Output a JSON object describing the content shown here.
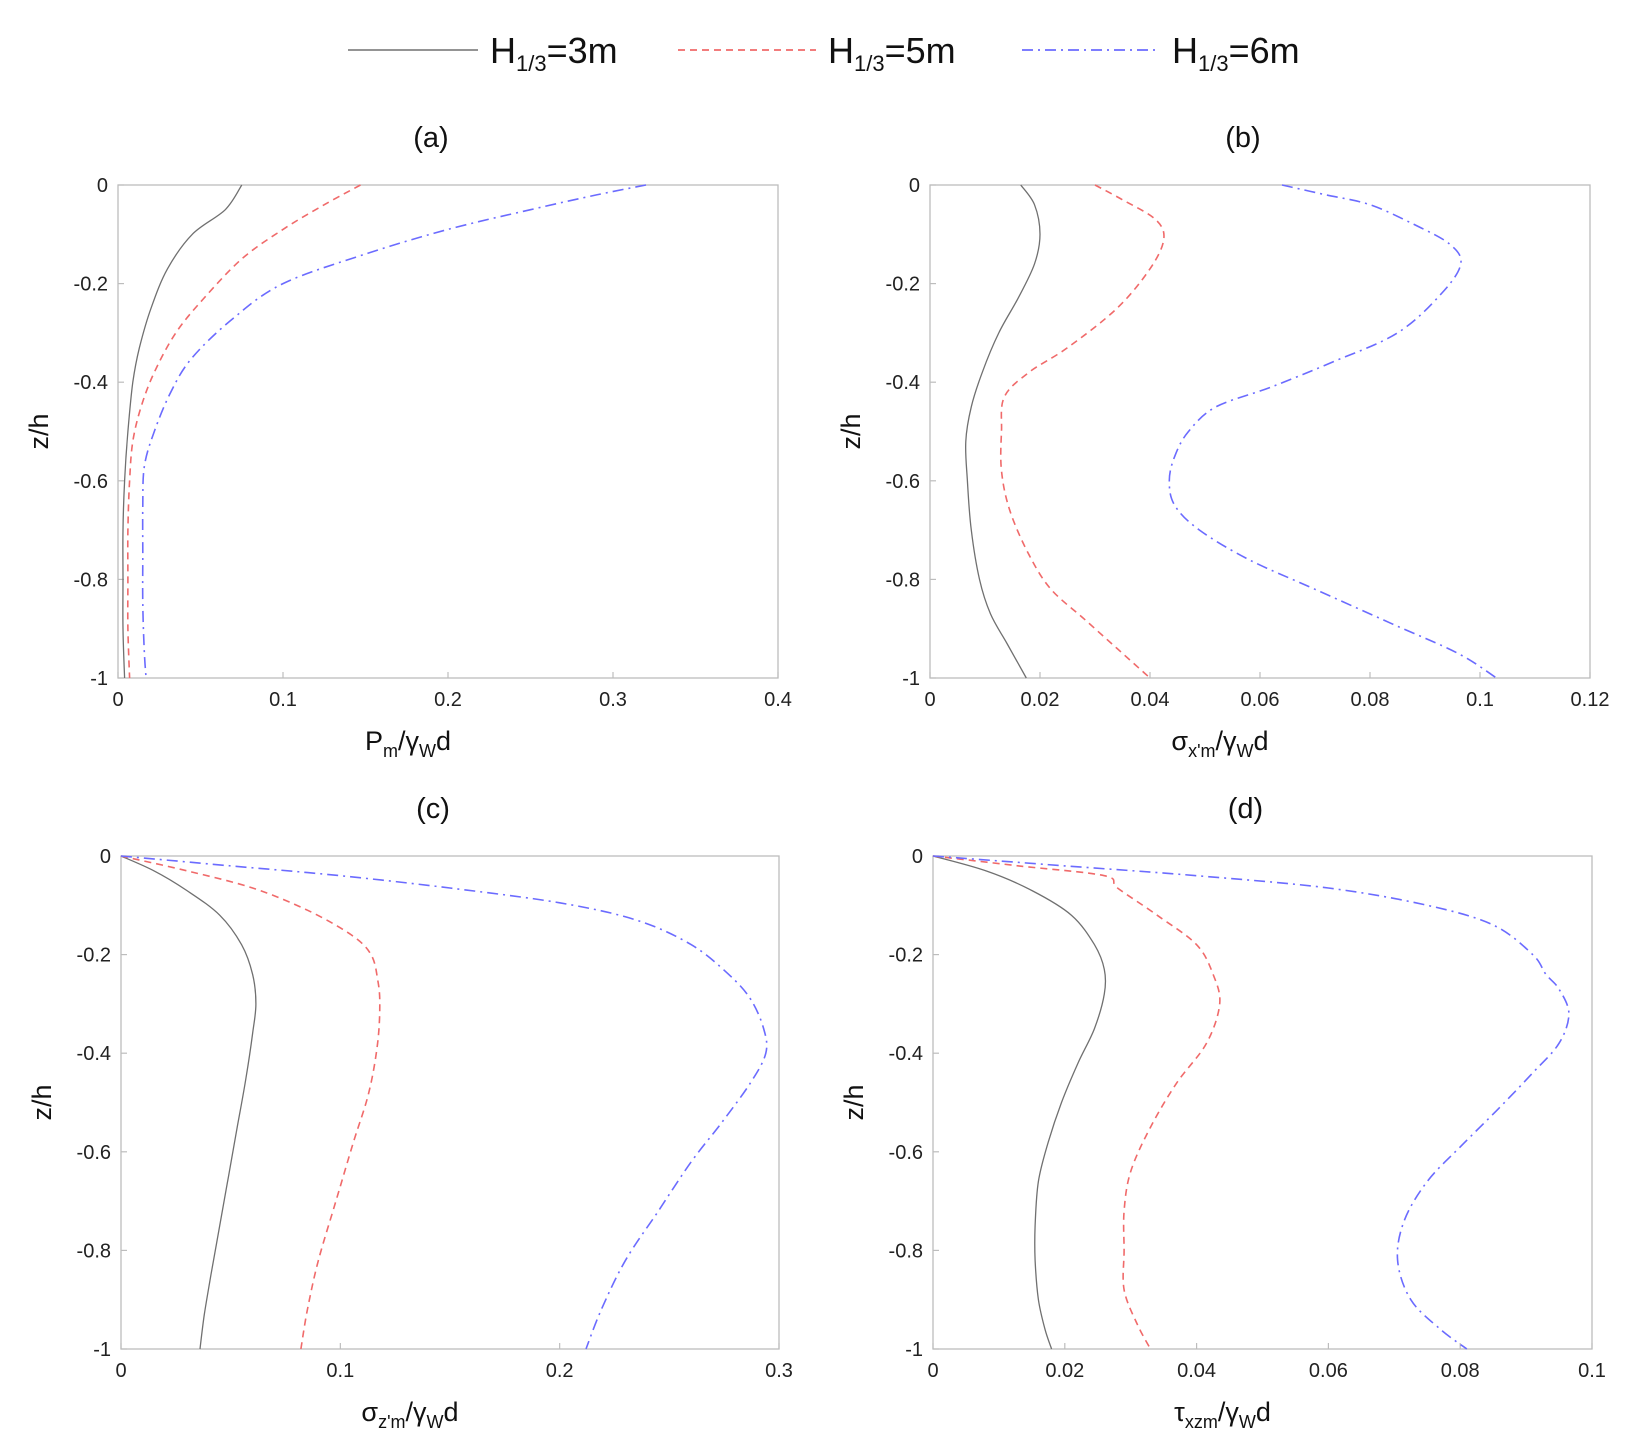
{
  "legend": [
    {
      "main": "H",
      "sub": "1/3",
      "rest": "=3m",
      "color": "#707070",
      "dash": "",
      "width": 1.3
    },
    {
      "main": "H",
      "sub": "1/3",
      "rest": "=5m",
      "color": "#f06a6a",
      "dash": "7,5",
      "width": 1.6
    },
    {
      "main": "H",
      "sub": "1/3",
      "rest": "=6m",
      "color": "#6b6bff",
      "dash": "11,5,2,5",
      "width": 1.6
    }
  ],
  "chart_data": [
    {
      "type": "line",
      "panel_label": "(a)",
      "xlabel": {
        "main": "P",
        "sub1": "m",
        "mid": "/γ",
        "sub2": "W",
        "tail": "d"
      },
      "ylabel": "z/h",
      "xlim": [
        0,
        0.4
      ],
      "ylim": [
        -1,
        0
      ],
      "xticks": [
        "0",
        "0.1",
        "0.2",
        "0.3",
        "0.4"
      ],
      "yticks": [
        "0",
        "-0.2",
        "-0.4",
        "-0.6",
        "-0.8",
        "-1"
      ],
      "series": [
        {
          "name": "H1/3=3m",
          "points": [
            [
              0.075,
              0
            ],
            [
              0.065,
              -0.05
            ],
            [
              0.045,
              -0.1
            ],
            [
              0.03,
              -0.17
            ],
            [
              0.02,
              -0.25
            ],
            [
              0.013,
              -0.33
            ],
            [
              0.009,
              -0.4
            ],
            [
              0.006,
              -0.5
            ],
            [
              0.004,
              -0.6
            ],
            [
              0.003,
              -0.7
            ],
            [
              0.003,
              -0.8
            ],
            [
              0.003,
              -0.9
            ],
            [
              0.004,
              -1.0
            ]
          ]
        },
        {
          "name": "H1/3=5m",
          "points": [
            [
              0.147,
              0
            ],
            [
              0.125,
              -0.04
            ],
            [
              0.1,
              -0.09
            ],
            [
              0.075,
              -0.15
            ],
            [
              0.052,
              -0.23
            ],
            [
              0.035,
              -0.3
            ],
            [
              0.022,
              -0.38
            ],
            [
              0.014,
              -0.45
            ],
            [
              0.009,
              -0.52
            ],
            [
              0.007,
              -0.6
            ],
            [
              0.006,
              -0.7
            ],
            [
              0.006,
              -0.8
            ],
            [
              0.006,
              -0.9
            ],
            [
              0.007,
              -1.0
            ]
          ]
        },
        {
          "name": "H1/3=6m",
          "points": [
            [
              0.32,
              0
            ],
            [
              0.29,
              -0.02
            ],
            [
              0.25,
              -0.05
            ],
            [
              0.2,
              -0.09
            ],
            [
              0.15,
              -0.14
            ],
            [
              0.1,
              -0.2
            ],
            [
              0.07,
              -0.27
            ],
            [
              0.045,
              -0.35
            ],
            [
              0.032,
              -0.42
            ],
            [
              0.022,
              -0.5
            ],
            [
              0.016,
              -0.57
            ],
            [
              0.015,
              -0.65
            ],
            [
              0.015,
              -0.75
            ],
            [
              0.015,
              -0.85
            ],
            [
              0.016,
              -0.95
            ],
            [
              0.017,
              -1.0
            ]
          ]
        }
      ]
    },
    {
      "type": "line",
      "panel_label": "(b)",
      "xlabel": {
        "main": "σ",
        "sub1": "x'm",
        "mid": "/γ",
        "sub2": "W",
        "tail": "d"
      },
      "ylabel": "z/h",
      "xlim": [
        0,
        0.12
      ],
      "ylim": [
        -1,
        0
      ],
      "xticks": [
        "0",
        "0.02",
        "0.04",
        "0.06",
        "0.08",
        "0.1",
        "0.12"
      ],
      "yticks": [
        "0",
        "-0.2",
        "-0.4",
        "-0.6",
        "-0.8",
        "-1"
      ],
      "series": [
        {
          "name": "H1/3=3m",
          "points": [
            [
              0.0165,
              0
            ],
            [
              0.019,
              -0.04
            ],
            [
              0.02,
              -0.1
            ],
            [
              0.019,
              -0.16
            ],
            [
              0.016,
              -0.23
            ],
            [
              0.0125,
              -0.3
            ],
            [
              0.0095,
              -0.38
            ],
            [
              0.0075,
              -0.45
            ],
            [
              0.0065,
              -0.52
            ],
            [
              0.0068,
              -0.6
            ],
            [
              0.0075,
              -0.7
            ],
            [
              0.009,
              -0.8
            ],
            [
              0.011,
              -0.87
            ],
            [
              0.014,
              -0.93
            ],
            [
              0.0175,
              -1.0
            ]
          ]
        },
        {
          "name": "H1/3=5m",
          "points": [
            [
              0.03,
              0
            ],
            [
              0.035,
              -0.03
            ],
            [
              0.041,
              -0.07
            ],
            [
              0.0425,
              -0.11
            ],
            [
              0.04,
              -0.17
            ],
            [
              0.034,
              -0.25
            ],
            [
              0.025,
              -0.33
            ],
            [
              0.018,
              -0.38
            ],
            [
              0.0135,
              -0.43
            ],
            [
              0.013,
              -0.5
            ],
            [
              0.013,
              -0.58
            ],
            [
              0.0145,
              -0.66
            ],
            [
              0.018,
              -0.75
            ],
            [
              0.022,
              -0.82
            ],
            [
              0.028,
              -0.88
            ],
            [
              0.034,
              -0.94
            ],
            [
              0.04,
              -1.0
            ]
          ]
        },
        {
          "name": "H1/3=6m",
          "points": [
            [
              0.064,
              0
            ],
            [
              0.072,
              -0.02
            ],
            [
              0.08,
              -0.04
            ],
            [
              0.088,
              -0.08
            ],
            [
              0.0945,
              -0.12
            ],
            [
              0.0965,
              -0.16
            ],
            [
              0.093,
              -0.22
            ],
            [
              0.085,
              -0.3
            ],
            [
              0.073,
              -0.36
            ],
            [
              0.062,
              -0.41
            ],
            [
              0.052,
              -0.45
            ],
            [
              0.047,
              -0.5
            ],
            [
              0.0445,
              -0.55
            ],
            [
              0.0435,
              -0.6
            ],
            [
              0.0445,
              -0.65
            ],
            [
              0.049,
              -0.7
            ],
            [
              0.058,
              -0.76
            ],
            [
              0.07,
              -0.82
            ],
            [
              0.084,
              -0.89
            ],
            [
              0.096,
              -0.95
            ],
            [
              0.103,
              -1.0
            ]
          ]
        }
      ]
    },
    {
      "type": "line",
      "panel_label": "(c)",
      "xlabel": {
        "main": "σ",
        "sub1": "z'm",
        "mid": "/γ",
        "sub2": "W",
        "tail": "d"
      },
      "ylabel": "z/h",
      "xlim": [
        0,
        0.3
      ],
      "ylim": [
        -1,
        0
      ],
      "xticks": [
        "0",
        "0.1",
        "0.2",
        "0.3"
      ],
      "yticks": [
        "0",
        "-0.2",
        "-0.4",
        "-0.6",
        "-0.8",
        "-1"
      ],
      "series": [
        {
          "name": "H1/3=3m",
          "points": [
            [
              0,
              0
            ],
            [
              0.015,
              -0.03
            ],
            [
              0.03,
              -0.07
            ],
            [
              0.045,
              -0.12
            ],
            [
              0.055,
              -0.18
            ],
            [
              0.06,
              -0.24
            ],
            [
              0.0615,
              -0.3
            ],
            [
              0.06,
              -0.36
            ],
            [
              0.057,
              -0.45
            ],
            [
              0.053,
              -0.55
            ],
            [
              0.049,
              -0.65
            ],
            [
              0.045,
              -0.75
            ],
            [
              0.041,
              -0.85
            ],
            [
              0.038,
              -0.93
            ],
            [
              0.036,
              -1.0
            ]
          ]
        },
        {
          "name": "H1/3=5m",
          "points": [
            [
              0,
              0
            ],
            [
              0.03,
              -0.03
            ],
            [
              0.06,
              -0.065
            ],
            [
              0.085,
              -0.11
            ],
            [
              0.105,
              -0.16
            ],
            [
              0.114,
              -0.2
            ],
            [
              0.117,
              -0.25
            ],
            [
              0.118,
              -0.3
            ],
            [
              0.117,
              -0.38
            ],
            [
              0.113,
              -0.48
            ],
            [
              0.106,
              -0.58
            ],
            [
              0.098,
              -0.7
            ],
            [
              0.09,
              -0.82
            ],
            [
              0.085,
              -0.92
            ],
            [
              0.082,
              -1.0
            ]
          ]
        },
        {
          "name": "H1/3=6m",
          "points": [
            [
              0,
              0
            ],
            [
              0.05,
              -0.02
            ],
            [
              0.1,
              -0.04
            ],
            [
              0.15,
              -0.065
            ],
            [
              0.2,
              -0.095
            ],
            [
              0.235,
              -0.13
            ],
            [
              0.26,
              -0.18
            ],
            [
              0.277,
              -0.24
            ],
            [
              0.287,
              -0.29
            ],
            [
              0.293,
              -0.35
            ],
            [
              0.294,
              -0.4
            ],
            [
              0.287,
              -0.46
            ],
            [
              0.274,
              -0.54
            ],
            [
              0.26,
              -0.62
            ],
            [
              0.245,
              -0.72
            ],
            [
              0.23,
              -0.82
            ],
            [
              0.219,
              -0.92
            ],
            [
              0.212,
              -1.0
            ]
          ]
        }
      ]
    },
    {
      "type": "line",
      "panel_label": "(d)",
      "xlabel": {
        "main": "τ",
        "sub1": "xzm",
        "mid": "/γ",
        "sub2": "W",
        "tail": "d"
      },
      "ylabel": "z/h",
      "xlim": [
        0,
        0.1
      ],
      "ylim": [
        -1,
        0
      ],
      "xticks": [
        "0",
        "0.02",
        "0.04",
        "0.06",
        "0.08",
        "0.1"
      ],
      "yticks": [
        "0",
        "-0.2",
        "-0.4",
        "-0.6",
        "-0.8",
        "-1"
      ],
      "series": [
        {
          "name": "H1/3=3m",
          "points": [
            [
              0,
              0
            ],
            [
              0.008,
              -0.03
            ],
            [
              0.015,
              -0.07
            ],
            [
              0.021,
              -0.12
            ],
            [
              0.0245,
              -0.18
            ],
            [
              0.026,
              -0.23
            ],
            [
              0.026,
              -0.28
            ],
            [
              0.0245,
              -0.35
            ],
            [
              0.022,
              -0.42
            ],
            [
              0.0195,
              -0.5
            ],
            [
              0.0175,
              -0.58
            ],
            [
              0.016,
              -0.66
            ],
            [
              0.0155,
              -0.75
            ],
            [
              0.0155,
              -0.82
            ],
            [
              0.016,
              -0.9
            ],
            [
              0.017,
              -0.96
            ],
            [
              0.018,
              -1.0
            ]
          ]
        },
        {
          "name": "H1/3=5m",
          "points": [
            [
              0,
              0
            ],
            [
              0.013,
              -0.02
            ],
            [
              0.026,
              -0.04
            ],
            [
              0.028,
              -0.065
            ],
            [
              0.034,
              -0.12
            ],
            [
              0.04,
              -0.18
            ],
            [
              0.0425,
              -0.24
            ],
            [
              0.0435,
              -0.3
            ],
            [
              0.0415,
              -0.38
            ],
            [
              0.037,
              -0.46
            ],
            [
              0.033,
              -0.55
            ],
            [
              0.03,
              -0.64
            ],
            [
              0.029,
              -0.72
            ],
            [
              0.029,
              -0.8
            ],
            [
              0.029,
              -0.88
            ],
            [
              0.031,
              -0.95
            ],
            [
              0.033,
              -1.0
            ]
          ]
        },
        {
          "name": "H1/3=6m",
          "points": [
            [
              0,
              0
            ],
            [
              0.02,
              -0.02
            ],
            [
              0.04,
              -0.04
            ],
            [
              0.06,
              -0.065
            ],
            [
              0.075,
              -0.1
            ],
            [
              0.085,
              -0.14
            ],
            [
              0.091,
              -0.2
            ],
            [
              0.093,
              -0.24
            ],
            [
              0.095,
              -0.27
            ],
            [
              0.0965,
              -0.32
            ],
            [
              0.095,
              -0.38
            ],
            [
              0.091,
              -0.44
            ],
            [
              0.086,
              -0.51
            ],
            [
              0.08,
              -0.59
            ],
            [
              0.075,
              -0.66
            ],
            [
              0.0715,
              -0.74
            ],
            [
              0.0705,
              -0.82
            ],
            [
              0.0725,
              -0.9
            ],
            [
              0.077,
              -0.96
            ],
            [
              0.081,
              -1.0
            ]
          ]
        }
      ]
    }
  ]
}
